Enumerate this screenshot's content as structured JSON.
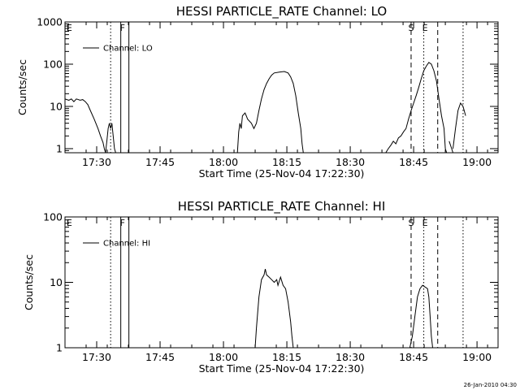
{
  "chart_data": [
    {
      "type": "line",
      "title": "HESSI PARTICLE_RATE Channel: LO",
      "xlabel": "Start Time (25-Nov-04 17:22:30)",
      "ylabel": "Counts/sec",
      "yscale": "log",
      "ylim": [
        0.8,
        1000
      ],
      "xlim": [
        17.375,
        19.083
      ],
      "xticks": [
        17.5,
        17.75,
        18.0,
        18.25,
        18.5,
        18.75,
        19.0
      ],
      "xtick_labels": [
        "17:30",
        "17:45",
        "18:00",
        "18:15",
        "18:30",
        "18:45",
        "19:00"
      ],
      "yticks": [
        1,
        10,
        100,
        1000
      ],
      "ytick_labels": [
        "1",
        "10",
        "100",
        "1000"
      ],
      "legend": {
        "entries": [
          "Channel: LO"
        ],
        "placement": "top-left"
      },
      "grid": false,
      "markers": [
        {
          "label": "E",
          "x": 17.378,
          "style": "none"
        },
        {
          "label": "",
          "x": 17.555,
          "style": "dotted"
        },
        {
          "label": "",
          "x": 17.595,
          "style": "solid"
        },
        {
          "label": "F",
          "x": 17.602,
          "style": "label"
        },
        {
          "label": "",
          "x": 17.627,
          "style": "solid"
        },
        {
          "label": "S",
          "x": 18.74,
          "style": "dashed"
        },
        {
          "label": "",
          "x": 18.79,
          "style": "dotted"
        },
        {
          "label": "E",
          "x": 18.795,
          "style": "label"
        },
        {
          "label": "",
          "x": 18.845,
          "style": "dashed"
        },
        {
          "label": "",
          "x": 18.945,
          "style": "dotted"
        }
      ],
      "series": [
        {
          "segments": [
            [
              [
                17.375,
                15
              ],
              [
                17.39,
                14
              ],
              [
                17.4,
                15
              ],
              [
                17.41,
                13
              ],
              [
                17.42,
                15
              ],
              [
                17.435,
                14
              ],
              [
                17.445,
                14.5
              ],
              [
                17.455,
                13
              ],
              [
                17.465,
                11
              ],
              [
                17.475,
                8
              ],
              [
                17.49,
                5
              ],
              [
                17.505,
                3
              ],
              [
                17.515,
                2
              ],
              [
                17.525,
                1.4
              ],
              [
                17.53,
                1
              ],
              [
                17.535,
                0.8
              ]
            ],
            [
              [
                17.535,
                0.8
              ],
              [
                17.54,
                1.5
              ],
              [
                17.545,
                3
              ],
              [
                17.55,
                4
              ],
              [
                17.555,
                3
              ],
              [
                17.56,
                4
              ],
              [
                17.565,
                2
              ],
              [
                17.57,
                1
              ],
              [
                17.575,
                0.8
              ]
            ],
            [
              [
                17.97,
                0.8
              ],
              [
                17.98,
                0.8
              ]
            ],
            [
              [
                18.055,
                0.8
              ],
              [
                18.06,
                2.5
              ],
              [
                18.065,
                4
              ],
              [
                18.07,
                3
              ],
              [
                18.075,
                6
              ],
              [
                18.085,
                7
              ],
              [
                18.09,
                6
              ],
              [
                18.095,
                5
              ],
              [
                18.11,
                4
              ],
              [
                18.12,
                3
              ],
              [
                18.13,
                4
              ],
              [
                18.14,
                8
              ],
              [
                18.15,
                15
              ],
              [
                18.16,
                25
              ],
              [
                18.17,
                35
              ],
              [
                18.18,
                45
              ],
              [
                18.19,
                55
              ],
              [
                18.2,
                62
              ],
              [
                18.22,
                65
              ],
              [
                18.24,
                67
              ],
              [
                18.255,
                62
              ],
              [
                18.265,
                50
              ],
              [
                18.275,
                35
              ],
              [
                18.285,
                18
              ],
              [
                18.295,
                7
              ],
              [
                18.305,
                3
              ],
              [
                18.31,
                1.3
              ],
              [
                18.315,
                0.8
              ]
            ],
            [
              [
                18.64,
                0.8
              ],
              [
                18.65,
                1
              ],
              [
                18.66,
                1.2
              ],
              [
                18.67,
                1.5
              ],
              [
                18.68,
                1.3
              ],
              [
                18.69,
                1.8
              ],
              [
                18.7,
                2
              ],
              [
                18.71,
                2.5
              ],
              [
                18.72,
                3
              ],
              [
                18.73,
                5
              ],
              [
                18.74,
                8
              ],
              [
                18.75,
                12
              ],
              [
                18.76,
                18
              ],
              [
                18.77,
                28
              ],
              [
                18.78,
                45
              ],
              [
                18.79,
                70
              ],
              [
                18.8,
                90
              ],
              [
                18.81,
                110
              ],
              [
                18.82,
                100
              ],
              [
                18.83,
                70
              ],
              [
                18.84,
                40
              ],
              [
                18.85,
                15
              ],
              [
                18.86,
                6
              ],
              [
                18.87,
                3
              ],
              [
                18.875,
                1
              ],
              [
                18.88,
                0.8
              ]
            ],
            [
              [
                18.89,
                1.5
              ],
              [
                18.9,
                1
              ],
              [
                18.905,
                0.8
              ]
            ],
            [
              [
                18.905,
                1
              ],
              [
                18.915,
                3
              ],
              [
                18.925,
                8
              ],
              [
                18.935,
                12
              ],
              [
                18.945,
                10
              ],
              [
                18.955,
                6
              ]
            ]
          ]
        }
      ]
    },
    {
      "type": "line",
      "title": "HESSI PARTICLE_RATE Channel: HI",
      "xlabel": "Start Time (25-Nov-04 17:22:30)",
      "ylabel": "Counts/sec",
      "yscale": "log",
      "ylim": [
        1,
        100
      ],
      "xlim": [
        17.375,
        19.083
      ],
      "xticks": [
        17.5,
        17.75,
        18.0,
        18.25,
        18.5,
        18.75,
        19.0
      ],
      "xtick_labels": [
        "17:30",
        "17:45",
        "18:00",
        "18:15",
        "18:30",
        "18:45",
        "19:00"
      ],
      "yticks": [
        1,
        10,
        100
      ],
      "ytick_labels": [
        "1",
        "10",
        "100"
      ],
      "legend": {
        "entries": [
          "Channel: HI"
        ],
        "placement": "top-left"
      },
      "grid": false,
      "markers": [
        {
          "label": "E",
          "x": 17.378,
          "style": "none"
        },
        {
          "label": "",
          "x": 17.555,
          "style": "dotted"
        },
        {
          "label": "",
          "x": 17.595,
          "style": "solid"
        },
        {
          "label": "F",
          "x": 17.602,
          "style": "label"
        },
        {
          "label": "",
          "x": 17.627,
          "style": "solid"
        },
        {
          "label": "S",
          "x": 18.74,
          "style": "dashed"
        },
        {
          "label": "",
          "x": 18.79,
          "style": "dotted"
        },
        {
          "label": "E",
          "x": 18.795,
          "style": "label"
        },
        {
          "label": "",
          "x": 18.845,
          "style": "dashed"
        },
        {
          "label": "",
          "x": 18.945,
          "style": "dotted"
        }
      ],
      "series": [
        {
          "segments": [
            [
              [
                18.125,
                1
              ],
              [
                18.13,
                2
              ],
              [
                18.14,
                6
              ],
              [
                18.15,
                11
              ],
              [
                18.16,
                13
              ],
              [
                18.165,
                16
              ],
              [
                18.17,
                13
              ],
              [
                18.18,
                12
              ],
              [
                18.19,
                11
              ],
              [
                18.2,
                10
              ],
              [
                18.21,
                11
              ],
              [
                18.215,
                9
              ],
              [
                18.225,
                12
              ],
              [
                18.235,
                9
              ],
              [
                18.245,
                8
              ],
              [
                18.255,
                5
              ],
              [
                18.265,
                2.5
              ],
              [
                18.27,
                1.5
              ],
              [
                18.275,
                1
              ]
            ],
            [
              [
                18.735,
                1
              ],
              [
                18.745,
                1.5
              ],
              [
                18.755,
                3
              ],
              [
                18.765,
                6
              ],
              [
                18.775,
                8
              ],
              [
                18.785,
                9
              ],
              [
                18.795,
                8.5
              ],
              [
                18.805,
                8
              ],
              [
                18.81,
                6
              ],
              [
                18.815,
                3
              ],
              [
                18.82,
                1.5
              ],
              [
                18.825,
                1
              ]
            ]
          ]
        }
      ]
    }
  ],
  "timestamp": "26-Jan-2010 04:30"
}
